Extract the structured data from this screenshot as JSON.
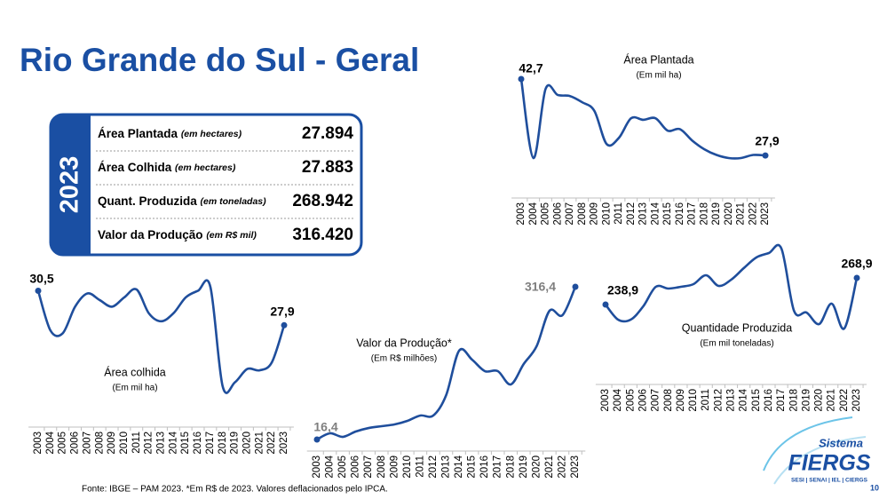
{
  "title": "Rio Grande do Sul - Geral",
  "summary": {
    "year": "2023",
    "rows": [
      {
        "label": "Área Plantada",
        "unit": "(em hectares)",
        "value": "27.894"
      },
      {
        "label": "Área Colhida",
        "unit": "(em hectares)",
        "value": "27.883"
      },
      {
        "label": "Quant. Produzida",
        "unit": "(em toneladas)",
        "value": "268.942"
      },
      {
        "label": "Valor da Produção",
        "unit": "(em R$ mil)",
        "value": "316.420"
      }
    ]
  },
  "chart_data": [
    {
      "type": "line",
      "title": "Área Plantada",
      "subtitle": "(Em mil ha)",
      "color": "#1f4e9c",
      "label_color": "#000000",
      "categories": [
        "2003",
        "2004",
        "2005",
        "2006",
        "2007",
        "2008",
        "2009",
        "2010",
        "2011",
        "2012",
        "2013",
        "2014",
        "2015",
        "2016",
        "2017",
        "2018",
        "2019",
        "2020",
        "2021",
        "2022",
        "2023"
      ],
      "values": [
        42.7,
        27.4,
        40.8,
        39.6,
        39.4,
        38.2,
        36.5,
        30.1,
        31.3,
        35.1,
        34.8,
        35.1,
        32.7,
        33.0,
        30.8,
        29.1,
        28.0,
        27.4,
        27.4,
        28.0,
        27.9
      ],
      "value_labels": [
        "42,7",
        null,
        null,
        null,
        null,
        null,
        null,
        null,
        null,
        null,
        null,
        null,
        null,
        null,
        null,
        null,
        null,
        null,
        null,
        null,
        "27,9"
      ]
    },
    {
      "type": "line",
      "title": "Área colhida",
      "subtitle": "(Em mil ha)",
      "color": "#1f4e9c",
      "label_color": "#000000",
      "categories": [
        "2003",
        "2004",
        "2005",
        "2006",
        "2007",
        "2008",
        "2009",
        "2010",
        "2011",
        "2012",
        "2013",
        "2014",
        "2015",
        "2016",
        "2017",
        "2018",
        "2019",
        "2020",
        "2021",
        "2022",
        "2023"
      ],
      "values": [
        30.5,
        27.5,
        27.3,
        29.3,
        30.3,
        29.8,
        29.3,
        30.0,
        30.6,
        28.8,
        28.2,
        28.8,
        30.0,
        30.5,
        30.8,
        23.3,
        23.6,
        24.6,
        24.5,
        25.1,
        27.9
      ],
      "value_labels": [
        "30,5",
        null,
        null,
        null,
        null,
        null,
        null,
        null,
        null,
        null,
        null,
        null,
        null,
        null,
        null,
        null,
        null,
        null,
        null,
        null,
        "27,9"
      ]
    },
    {
      "type": "line",
      "title": "Valor da Produção*",
      "subtitle": "(Em R$ milhões)",
      "color": "#1f4e9c",
      "label_color": "#7f7f7f",
      "categories": [
        "2003",
        "2004",
        "2005",
        "2006",
        "2007",
        "2008",
        "2009",
        "2010",
        "2011",
        "2012",
        "2013",
        "2014",
        "2015",
        "2016",
        "2017",
        "2018",
        "2019",
        "2020",
        "2021",
        "2022",
        "2023"
      ],
      "values": [
        16.4,
        28.6,
        21.6,
        32.1,
        39.0,
        42.6,
        46.0,
        53.0,
        63.5,
        63.5,
        103.6,
        190.8,
        173.4,
        150.7,
        150.7,
        124.6,
        164.7,
        199.6,
        269.3,
        260.6,
        316.4
      ],
      "value_labels": [
        "16,4",
        null,
        null,
        null,
        null,
        null,
        null,
        null,
        null,
        null,
        null,
        null,
        null,
        null,
        null,
        null,
        null,
        null,
        null,
        null,
        "316,4"
      ]
    },
    {
      "type": "line",
      "title": "Quantidade Produzida",
      "subtitle": "(Em mil toneladas)",
      "color": "#1f4e9c",
      "label_color": "#000000",
      "categories": [
        "2003",
        "2004",
        "2005",
        "2006",
        "2007",
        "2008",
        "2009",
        "2010",
        "2011",
        "2012",
        "2013",
        "2014",
        "2015",
        "2016",
        "2017",
        "2018",
        "2019",
        "2020",
        "2021",
        "2022",
        "2023"
      ],
      "values": [
        238.9,
        221.9,
        221.9,
        236.9,
        258.9,
        256.9,
        258.9,
        261.9,
        271.9,
        259.9,
        266.9,
        279.9,
        291.9,
        296.9,
        301.9,
        231.9,
        229.9,
        216.9,
        239.9,
        211.9,
        268.9
      ],
      "value_labels": [
        "238,9",
        null,
        null,
        null,
        null,
        null,
        null,
        null,
        null,
        null,
        null,
        null,
        null,
        null,
        null,
        null,
        null,
        null,
        null,
        null,
        "268,9"
      ]
    }
  ],
  "footer": "Fonte: IBGE – PAM 2023. *Em R$ de 2023. Valores deflacionados pelo IPCA.",
  "page_number": "10",
  "logo": {
    "top": "Sistema",
    "name": "FIERGS",
    "members": "SESI | SENAI | IEL | CIERGS"
  }
}
